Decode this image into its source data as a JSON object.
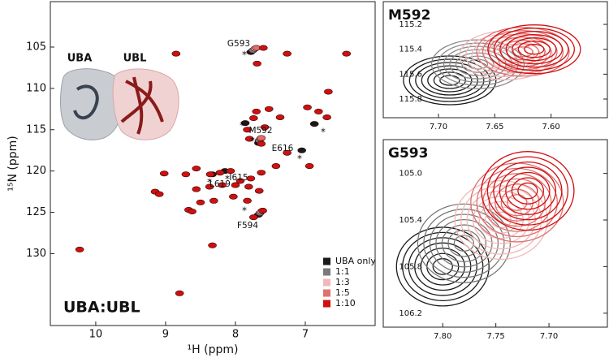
{
  "chart_data": [
    {
      "type": "scatter",
      "label": "UBA:UBL",
      "xlabel": "¹H (ppm)",
      "ylabel": "¹⁵N (ppm)",
      "xlim": [
        10.65,
        6.0
      ],
      "ylim": [
        99.5,
        138.7
      ],
      "xticks": [
        10,
        9,
        8,
        7
      ],
      "yticks": [
        105,
        110,
        115,
        120,
        125,
        130
      ],
      "legend": "lower right",
      "structure_labels": [
        "UBA",
        "UBL"
      ],
      "peak_marker": "*",
      "annotations": [
        "G593",
        "M592",
        "E616",
        "I615",
        "L619",
        "F594"
      ],
      "series": [
        {
          "name": "UBA only",
          "color": "#1a1a1a",
          "x": [
            7.78,
            7.67,
            7.86,
            6.87,
            8.33,
            7.67,
            7.05,
            8.15
          ],
          "y": [
            105.6,
            116.6,
            114.2,
            114.3,
            120.4,
            125.3,
            117.5,
            120.0
          ]
        },
        {
          "name": "1:1",
          "color": "#7a7a7a",
          "x": [
            7.75,
            7.66,
            7.65
          ],
          "y": [
            105.4,
            116.3,
            125.1
          ]
        },
        {
          "name": "1:3",
          "color": "#f2b8b8",
          "x": [
            7.72,
            7.64,
            7.63
          ],
          "y": [
            105.2,
            116.1,
            124.9
          ]
        },
        {
          "name": "1:5",
          "color": "#e07070",
          "x": [
            7.7,
            7.63,
            7.61
          ],
          "y": [
            105.1,
            116.0,
            124.8
          ]
        },
        {
          "name": "1:10",
          "color": "#d01010",
          "x": [
            7.6,
            8.85,
            7.26,
            6.41,
            7.69,
            6.67,
            7.7,
            7.52,
            7.74,
            7.36,
            6.97,
            6.81,
            6.69,
            7.58,
            7.83,
            7.63,
            7.8,
            7.26,
            6.94,
            9.02,
            8.71,
            8.56,
            8.36,
            8.22,
            8.07,
            7.93,
            7.78,
            7.63,
            7.42,
            8.56,
            8.37,
            8.19,
            8.0,
            7.81,
            7.66,
            8.67,
            8.5,
            8.31,
            8.03,
            7.83,
            8.33,
            8.8,
            10.23,
            9.15,
            9.09,
            8.62,
            7.74,
            7.61
          ],
          "y": [
            105.1,
            105.8,
            105.8,
            105.8,
            107.0,
            110.4,
            112.8,
            112.5,
            113.6,
            113.5,
            112.3,
            112.8,
            113.5,
            114.7,
            115.0,
            116.7,
            116.1,
            117.8,
            119.4,
            120.3,
            120.4,
            119.7,
            120.4,
            120.2,
            120.0,
            121.2,
            120.9,
            120.2,
            119.4,
            122.2,
            121.9,
            121.7,
            121.7,
            121.9,
            122.4,
            124.7,
            123.8,
            123.6,
            123.1,
            123.6,
            129.0,
            134.8,
            129.5,
            122.5,
            122.8,
            124.9,
            125.6,
            124.8
          ]
        }
      ]
    },
    {
      "type": "contour",
      "title": "M592",
      "xlim": [
        7.749,
        7.55
      ],
      "ylim": [
        115.017,
        115.95
      ],
      "xticks": [
        {
          "value": 7.7,
          "label": "7.70"
        },
        7.65,
        {
          "value": 7.6,
          "label": "7.60"
        }
      ],
      "yticks": [
        115.2,
        115.4,
        115.6,
        115.8
      ],
      "series": [
        {
          "color": "#1a1a1a",
          "x": [
            7.69
          ],
          "y": [
            115.65
          ]
        },
        {
          "color": "#8a8a8a",
          "x": [
            7.665
          ],
          "y": [
            115.52
          ]
        },
        {
          "color": "#f2b8b8",
          "x": [
            7.64
          ],
          "y": [
            115.45
          ]
        },
        {
          "color": "#e07070",
          "x": [
            7.625
          ],
          "y": [
            115.42
          ]
        },
        {
          "color": "#d01010",
          "x": [
            7.615
          ],
          "y": [
            115.4
          ]
        }
      ]
    },
    {
      "type": "contour",
      "title": "G593",
      "xlim": [
        7.856,
        7.645
      ],
      "ylim": [
        104.71,
        106.32
      ],
      "xticks": [
        {
          "value": 7.8,
          "label": "7.80"
        },
        7.75,
        {
          "value": 7.7,
          "label": "7.70"
        }
      ],
      "yticks": [
        {
          "value": 105,
          "label": "105.0"
        },
        105.4,
        105.8,
        106.2
      ],
      "series": [
        {
          "color": "#1a1a1a",
          "x": [
            7.8
          ],
          "y": [
            105.8
          ]
        },
        {
          "color": "#7a7a7a",
          "x": [
            7.78
          ],
          "y": [
            105.6
          ]
        },
        {
          "color": "#f2b8b8",
          "x": [
            7.745
          ],
          "y": [
            105.4
          ]
        },
        {
          "color": "#e07070",
          "x": [
            7.73
          ],
          "y": [
            105.25
          ]
        },
        {
          "color": "#d01010",
          "x": [
            7.72
          ],
          "y": [
            105.15
          ]
        }
      ]
    }
  ]
}
